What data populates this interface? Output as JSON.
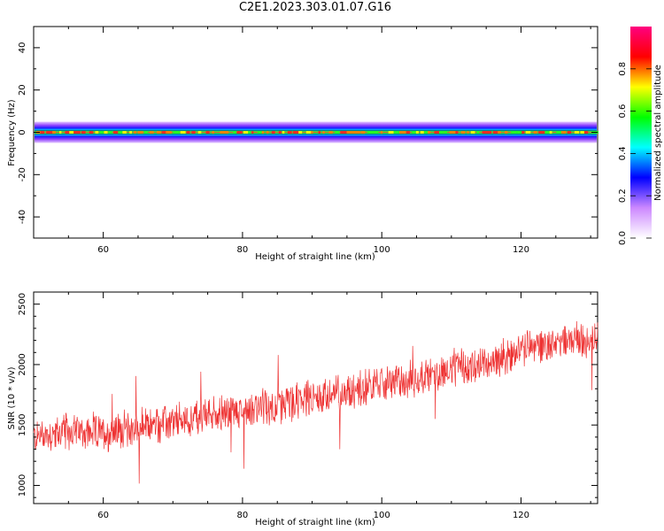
{
  "title": "C2E1.2023.303.01.07.G16",
  "chart_data": [
    {
      "type": "heatmap",
      "title": "C2E1.2023.303.01.07.G16",
      "xlabel": "Height of straight line (km)",
      "ylabel": "Frequency (Hz)",
      "xlim": [
        50,
        131
      ],
      "ylim": [
        -50,
        50
      ],
      "xticks": [
        "60",
        "80",
        "100",
        "120"
      ],
      "yticks": [
        "40",
        "20",
        "0",
        "-20",
        "-40"
      ],
      "xtick_values": [
        60,
        80,
        100,
        120
      ],
      "ytick_values": [
        40,
        20,
        0,
        -20,
        -40
      ],
      "band_center_hz": 0,
      "band_halfwidth_hz": 5,
      "colorbar": {
        "label": "Normalized spectral amplitude",
        "ticks": [
          "0.0",
          "0.2",
          "0.4",
          "0.6",
          "0.8"
        ],
        "tick_values": [
          0.0,
          0.2,
          0.4,
          0.6,
          0.8
        ],
        "range": [
          0,
          1
        ],
        "colormap": [
          "#ffffff",
          "#cc88ff",
          "#0000ff",
          "#00ffff",
          "#00ff00",
          "#ffff00",
          "#ff0000",
          "#ff0080"
        ]
      },
      "grid": false
    },
    {
      "type": "line",
      "xlabel": "Height of straight line (km)",
      "ylabel": "SNR (10 * v/v)",
      "xlim": [
        50,
        131
      ],
      "ylim": [
        850,
        2600
      ],
      "xticks": [
        "60",
        "80",
        "100",
        "120"
      ],
      "yticks": [
        "2500",
        "2000",
        "1500",
        "1000"
      ],
      "xtick_values": [
        60,
        80,
        100,
        120
      ],
      "ytick_values": [
        2500,
        2000,
        1500,
        1000
      ],
      "color": "#ee3333",
      "x": [
        50,
        55,
        60,
        65,
        70,
        75,
        80,
        85,
        90,
        95,
        100,
        105,
        110,
        115,
        120,
        125,
        131
      ],
      "y": [
        1400,
        1450,
        1430,
        1480,
        1520,
        1580,
        1620,
        1660,
        1720,
        1780,
        1840,
        1880,
        1960,
        2000,
        2120,
        2180,
        2230
      ],
      "noise_halfwidth": 140,
      "grid": false
    }
  ]
}
